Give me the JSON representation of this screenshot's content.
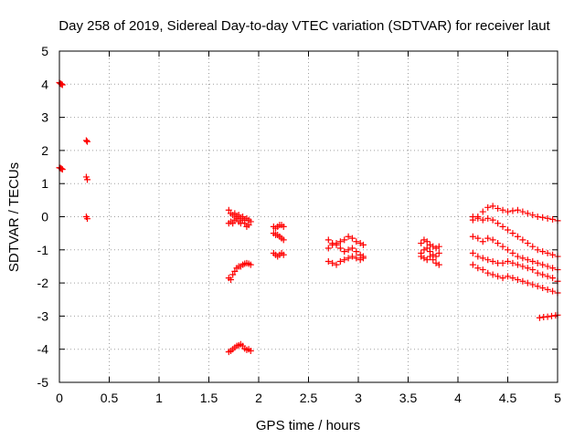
{
  "chart_data": {
    "type": "scatter",
    "title": "Day 258 of 2019, Sidereal Day-to-day VTEC variation (SDTVAR) for receiver laut",
    "xlabel": "GPS time / hours",
    "ylabel": "SDTVAR / TECUs",
    "xlim": [
      0,
      5
    ],
    "ylim": [
      -5,
      5
    ],
    "xticks": [
      0,
      0.5,
      1,
      1.5,
      2,
      2.5,
      3,
      3.5,
      4,
      4.5,
      5
    ],
    "xtick_labels": [
      "0",
      "0.5",
      "1",
      "1.5",
      "2",
      "2.5",
      "3",
      "3.5",
      "4",
      "4.5",
      "5"
    ],
    "yticks": [
      -5,
      -4,
      -3,
      -2,
      -1,
      0,
      1,
      2,
      3,
      4,
      5
    ],
    "ytick_labels": [
      "-5",
      "-4",
      "-3",
      "-2",
      "-1",
      "0",
      "1",
      "2",
      "3",
      "4",
      "5"
    ],
    "grid": true,
    "marker": "+",
    "marker_color": "#ff0000",
    "series": [
      {
        "name": "t0_a",
        "points": [
          [
            0.0,
            4.05
          ],
          [
            0.01,
            4.02
          ],
          [
            0.02,
            4.0
          ],
          [
            0.03,
            3.98
          ]
        ]
      },
      {
        "name": "t0_b",
        "points": [
          [
            0.0,
            1.48
          ],
          [
            0.01,
            1.47
          ],
          [
            0.02,
            1.45
          ],
          [
            0.03,
            1.43
          ]
        ]
      },
      {
        "name": "t03_a",
        "points": [
          [
            0.27,
            2.3
          ],
          [
            0.28,
            2.27
          ]
        ]
      },
      {
        "name": "t03_b",
        "points": [
          [
            0.27,
            1.2
          ],
          [
            0.28,
            1.12
          ]
        ]
      },
      {
        "name": "t03_c",
        "points": [
          [
            0.27,
            0.0
          ],
          [
            0.28,
            -0.06
          ]
        ]
      },
      {
        "name": "s17_up",
        "points": [
          [
            1.7,
            0.2
          ],
          [
            1.72,
            0.1
          ],
          [
            1.74,
            0.05
          ],
          [
            1.76,
            0.1
          ],
          [
            1.78,
            0.0
          ],
          [
            1.8,
            0.05
          ],
          [
            1.82,
            -0.05
          ],
          [
            1.84,
            0.0
          ],
          [
            1.86,
            -0.1
          ],
          [
            1.88,
            -0.05
          ],
          [
            1.9,
            -0.1
          ],
          [
            1.92,
            -0.15
          ]
        ]
      },
      {
        "name": "s17_mid",
        "points": [
          [
            1.7,
            -0.2
          ],
          [
            1.72,
            -0.15
          ],
          [
            1.74,
            -0.2
          ],
          [
            1.76,
            -0.1
          ],
          [
            1.78,
            -0.05
          ],
          [
            1.8,
            -0.15
          ],
          [
            1.82,
            -0.2
          ],
          [
            1.84,
            -0.1
          ],
          [
            1.86,
            -0.2
          ],
          [
            1.88,
            -0.3
          ],
          [
            1.9,
            -0.25
          ]
        ]
      },
      {
        "name": "s17_low",
        "points": [
          [
            1.7,
            -1.85
          ],
          [
            1.72,
            -1.9
          ],
          [
            1.74,
            -1.75
          ],
          [
            1.76,
            -1.65
          ],
          [
            1.78,
            -1.55
          ],
          [
            1.8,
            -1.5
          ],
          [
            1.82,
            -1.5
          ],
          [
            1.84,
            -1.45
          ],
          [
            1.86,
            -1.42
          ],
          [
            1.88,
            -1.4
          ],
          [
            1.9,
            -1.42
          ],
          [
            1.92,
            -1.45
          ]
        ]
      },
      {
        "name": "s17_bottom",
        "points": [
          [
            1.7,
            -4.08
          ],
          [
            1.72,
            -4.05
          ],
          [
            1.74,
            -4.0
          ],
          [
            1.76,
            -3.95
          ],
          [
            1.78,
            -3.9
          ],
          [
            1.8,
            -3.88
          ],
          [
            1.82,
            -3.85
          ],
          [
            1.84,
            -3.9
          ],
          [
            1.86,
            -3.98
          ],
          [
            1.88,
            -4.02
          ],
          [
            1.9,
            -4.0
          ],
          [
            1.92,
            -4.05
          ]
        ]
      },
      {
        "name": "s21_a",
        "points": [
          [
            2.15,
            -0.3
          ],
          [
            2.17,
            -0.35
          ],
          [
            2.19,
            -0.3
          ],
          [
            2.21,
            -0.25
          ],
          [
            2.23,
            -0.25
          ],
          [
            2.25,
            -0.3
          ]
        ]
      },
      {
        "name": "s21_b",
        "points": [
          [
            2.15,
            -0.5
          ],
          [
            2.17,
            -0.55
          ],
          [
            2.19,
            -0.55
          ],
          [
            2.21,
            -0.6
          ],
          [
            2.23,
            -0.65
          ],
          [
            2.25,
            -0.7
          ]
        ]
      },
      {
        "name": "s21_c",
        "points": [
          [
            2.15,
            -1.1
          ],
          [
            2.17,
            -1.15
          ],
          [
            2.19,
            -1.2
          ],
          [
            2.21,
            -1.15
          ],
          [
            2.23,
            -1.1
          ],
          [
            2.25,
            -1.15
          ]
        ]
      },
      {
        "name": "s28_a",
        "points": [
          [
            2.7,
            -0.7
          ],
          [
            2.74,
            -0.8
          ],
          [
            2.78,
            -0.85
          ],
          [
            2.82,
            -0.75
          ],
          [
            2.86,
            -0.7
          ],
          [
            2.9,
            -0.6
          ],
          [
            2.94,
            -0.65
          ],
          [
            2.98,
            -0.75
          ],
          [
            3.02,
            -0.8
          ],
          [
            3.05,
            -0.85
          ]
        ]
      },
      {
        "name": "s28_b",
        "points": [
          [
            2.7,
            -0.95
          ],
          [
            2.74,
            -0.85
          ],
          [
            2.78,
            -0.8
          ],
          [
            2.82,
            -0.95
          ],
          [
            2.86,
            -1.05
          ],
          [
            2.9,
            -1.0
          ],
          [
            2.94,
            -0.95
          ],
          [
            2.98,
            -1.05
          ],
          [
            3.02,
            -1.15
          ],
          [
            3.05,
            -1.2
          ]
        ]
      },
      {
        "name": "s28_c",
        "points": [
          [
            2.7,
            -1.35
          ],
          [
            2.74,
            -1.4
          ],
          [
            2.78,
            -1.45
          ],
          [
            2.82,
            -1.35
          ],
          [
            2.86,
            -1.3
          ],
          [
            2.9,
            -1.25
          ],
          [
            2.94,
            -1.2
          ],
          [
            2.98,
            -1.25
          ],
          [
            3.02,
            -1.3
          ],
          [
            3.05,
            -1.25
          ]
        ]
      },
      {
        "name": "s37_a",
        "points": [
          [
            3.63,
            -0.8
          ],
          [
            3.66,
            -0.7
          ],
          [
            3.69,
            -0.75
          ],
          [
            3.72,
            -0.85
          ],
          [
            3.75,
            -0.9
          ],
          [
            3.78,
            -0.95
          ],
          [
            3.81,
            -0.9
          ]
        ]
      },
      {
        "name": "s37_b",
        "points": [
          [
            3.63,
            -1.1
          ],
          [
            3.66,
            -1.0
          ],
          [
            3.69,
            -0.95
          ],
          [
            3.72,
            -1.05
          ],
          [
            3.75,
            -1.15
          ],
          [
            3.78,
            -1.2
          ],
          [
            3.81,
            -1.1
          ]
        ]
      },
      {
        "name": "s37_c",
        "points": [
          [
            3.63,
            -1.2
          ],
          [
            3.66,
            -1.25
          ],
          [
            3.69,
            -1.3
          ],
          [
            3.72,
            -1.2
          ],
          [
            3.75,
            -1.3
          ],
          [
            3.78,
            -1.4
          ],
          [
            3.81,
            -1.45
          ]
        ]
      },
      {
        "name": "s42_top",
        "points": [
          [
            4.15,
            -0.1
          ],
          [
            4.2,
            0.0
          ],
          [
            4.25,
            0.15
          ],
          [
            4.3,
            0.28
          ],
          [
            4.35,
            0.32
          ],
          [
            4.4,
            0.25
          ],
          [
            4.45,
            0.2
          ],
          [
            4.5,
            0.15
          ],
          [
            4.55,
            0.18
          ],
          [
            4.6,
            0.2
          ],
          [
            4.65,
            0.15
          ],
          [
            4.7,
            0.1
          ],
          [
            4.75,
            0.05
          ],
          [
            4.8,
            0.0
          ],
          [
            4.85,
            -0.02
          ],
          [
            4.9,
            -0.05
          ],
          [
            4.95,
            -0.08
          ],
          [
            5.0,
            -0.12
          ]
        ]
      },
      {
        "name": "s42_a",
        "points": [
          [
            4.15,
            0.0
          ],
          [
            4.2,
            -0.05
          ],
          [
            4.25,
            -0.1
          ],
          [
            4.3,
            -0.05
          ],
          [
            4.35,
            -0.1
          ],
          [
            4.4,
            -0.2
          ],
          [
            4.45,
            -0.3
          ],
          [
            4.5,
            -0.4
          ],
          [
            4.55,
            -0.5
          ],
          [
            4.6,
            -0.6
          ],
          [
            4.65,
            -0.7
          ],
          [
            4.7,
            -0.8
          ],
          [
            4.75,
            -0.9
          ],
          [
            4.8,
            -1.0
          ],
          [
            4.85,
            -1.05
          ],
          [
            4.9,
            -1.1
          ],
          [
            4.95,
            -1.15
          ],
          [
            5.0,
            -1.2
          ]
        ]
      },
      {
        "name": "s42_b",
        "points": [
          [
            4.15,
            -0.6
          ],
          [
            4.2,
            -0.65
          ],
          [
            4.25,
            -0.75
          ],
          [
            4.3,
            -0.65
          ],
          [
            4.35,
            -0.7
          ],
          [
            4.4,
            -0.8
          ],
          [
            4.45,
            -0.9
          ],
          [
            4.5,
            -1.0
          ],
          [
            4.55,
            -1.1
          ],
          [
            4.6,
            -1.2
          ],
          [
            4.65,
            -1.25
          ],
          [
            4.7,
            -1.3
          ],
          [
            4.75,
            -1.35
          ],
          [
            4.8,
            -1.4
          ],
          [
            4.85,
            -1.45
          ],
          [
            4.9,
            -1.5
          ],
          [
            4.95,
            -1.55
          ],
          [
            5.0,
            -1.6
          ]
        ]
      },
      {
        "name": "s42_c",
        "points": [
          [
            4.15,
            -1.1
          ],
          [
            4.2,
            -1.2
          ],
          [
            4.25,
            -1.25
          ],
          [
            4.3,
            -1.3
          ],
          [
            4.35,
            -1.35
          ],
          [
            4.4,
            -1.4
          ],
          [
            4.45,
            -1.4
          ],
          [
            4.5,
            -1.35
          ],
          [
            4.55,
            -1.4
          ],
          [
            4.6,
            -1.45
          ],
          [
            4.65,
            -1.5
          ],
          [
            4.7,
            -1.55
          ],
          [
            4.75,
            -1.6
          ],
          [
            4.8,
            -1.7
          ],
          [
            4.85,
            -1.75
          ],
          [
            4.9,
            -1.8
          ],
          [
            4.95,
            -1.85
          ],
          [
            5.0,
            -1.95
          ]
        ]
      },
      {
        "name": "s42_d",
        "points": [
          [
            4.15,
            -1.45
          ],
          [
            4.2,
            -1.55
          ],
          [
            4.25,
            -1.6
          ],
          [
            4.3,
            -1.7
          ],
          [
            4.35,
            -1.75
          ],
          [
            4.4,
            -1.8
          ],
          [
            4.45,
            -1.85
          ],
          [
            4.5,
            -1.8
          ],
          [
            4.55,
            -1.85
          ],
          [
            4.6,
            -1.9
          ],
          [
            4.65,
            -1.95
          ],
          [
            4.7,
            -2.0
          ],
          [
            4.75,
            -2.05
          ],
          [
            4.8,
            -2.1
          ],
          [
            4.85,
            -2.15
          ],
          [
            4.9,
            -2.2
          ],
          [
            4.95,
            -2.25
          ],
          [
            5.0,
            -2.3
          ]
        ]
      },
      {
        "name": "s48_bottom",
        "points": [
          [
            4.82,
            -3.05
          ],
          [
            4.86,
            -3.03
          ],
          [
            4.9,
            -3.02
          ],
          [
            4.94,
            -3.0
          ],
          [
            4.98,
            -2.98
          ],
          [
            5.0,
            -2.97
          ]
        ]
      }
    ]
  }
}
